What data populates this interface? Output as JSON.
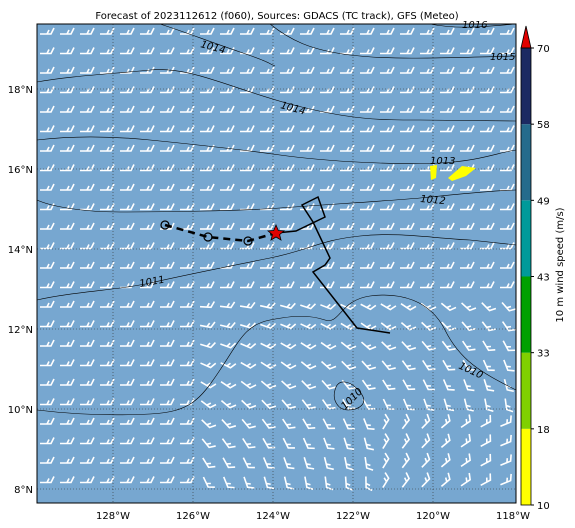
{
  "title": "Forecast of 2023112612 (f060), Sources: GDACS (TC track), GFS (Meteo)",
  "lon_labels": [
    "128°W",
    "126°W",
    "124°W",
    "122°W",
    "120°W",
    "118°W"
  ],
  "lat_labels": [
    "18°N",
    "16°N",
    "14°N",
    "12°N",
    "10°N",
    "8°N"
  ],
  "isobar_labels": [
    "1016",
    "1015",
    "1014",
    "1014",
    "1013",
    "1012",
    "1011",
    "1010",
    "1010"
  ],
  "colorbar": {
    "label": "10 m wind speed (m/s)",
    "levels": [
      10,
      18,
      33,
      43,
      49,
      58,
      70
    ],
    "colors": [
      "#ffff00",
      "#80d000",
      "#00a000",
      "#009a9a",
      "#256b8c",
      "#1c2a62"
    ],
    "extend_color": "#e00000"
  }
}
